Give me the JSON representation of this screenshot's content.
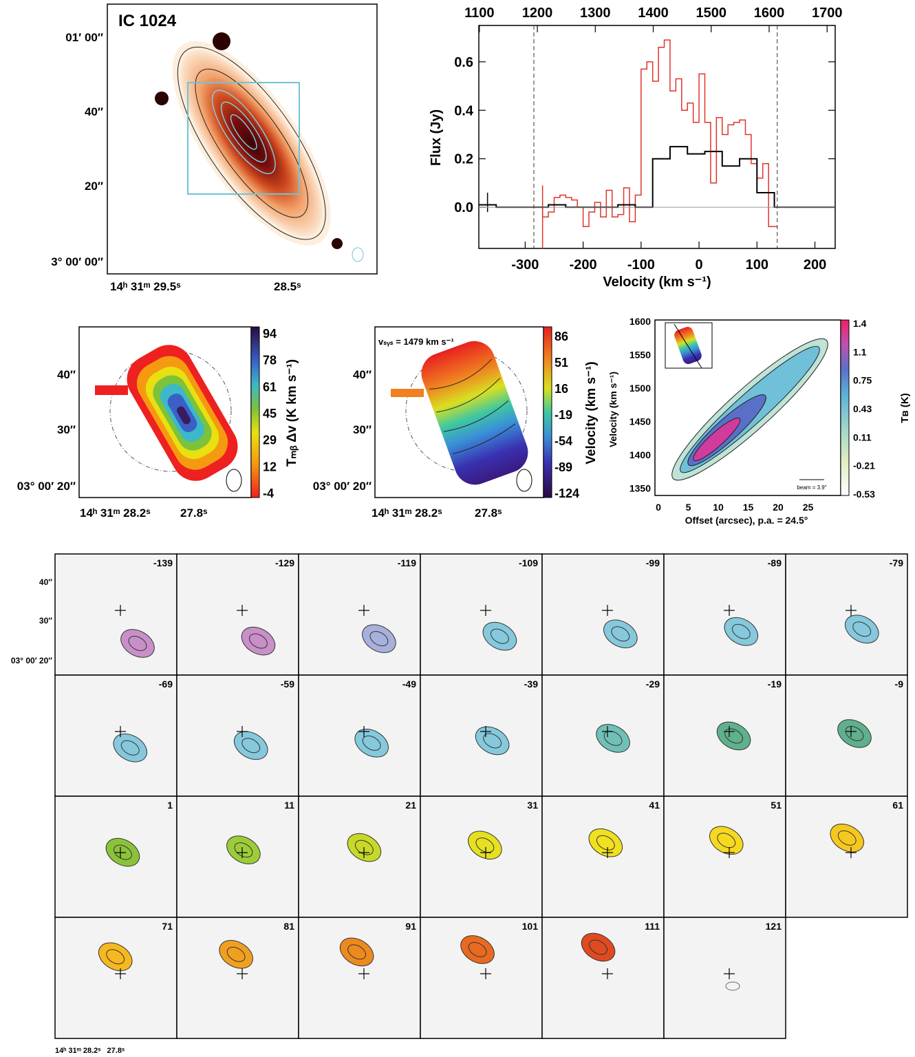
{
  "figure": {
    "title": "IC 1024",
    "colors": {
      "cyan_box": "#6fc3d6",
      "spectrum_red": "#e0332a",
      "spectrum_black": "#000000",
      "panel_bg": "#f2f2f2"
    }
  },
  "image_panel": {
    "dec_ticks": [
      "01′ 00″",
      "40″",
      "20″",
      "3° 00′ 00″"
    ],
    "ra_label_1": "14ʰ 31ᵐ 29.5ˢ",
    "ra_label_2": "28.5ˢ"
  },
  "spectrum": {
    "ylabel": "Flux (Jy)",
    "xlabel": "Velocity (km s⁻¹)",
    "top_ticks": [
      "1100",
      "1200",
      "1300",
      "1400",
      "1500",
      "1600",
      "1700"
    ],
    "bottom_ticks": [
      "-300",
      "-200",
      "-100",
      "0",
      "100",
      "200"
    ],
    "y_ticks": [
      "0.0",
      "0.2",
      "0.4",
      "0.6"
    ]
  },
  "chart_data": {
    "type": "line",
    "title": "",
    "xlabel": "Velocity (km s⁻¹)",
    "ylabel": "Flux (Jy)",
    "xlim": [
      -380,
      235
    ],
    "ylim": [
      -0.17,
      0.75
    ],
    "top_axis_label_values": [
      1100,
      1200,
      1300,
      1400,
      1500,
      1600,
      1700
    ],
    "vertical_dashed_lines": [
      -285,
      135
    ],
    "series": [
      {
        "color": "#e0332a",
        "step": true,
        "x": [
          -285,
          -270,
          -260,
          -250,
          -240,
          -230,
          -220,
          -210,
          -200,
          -190,
          -180,
          -170,
          -160,
          -150,
          -140,
          -130,
          -120,
          -110,
          -100,
          -90,
          -80,
          -70,
          -60,
          -50,
          -40,
          -30,
          -20,
          -10,
          0,
          10,
          20,
          30,
          40,
          50,
          60,
          70,
          80,
          90,
          100,
          110,
          120,
          135
        ],
        "y": [
          0.0,
          -0.04,
          -0.02,
          0.04,
          0.05,
          0.04,
          0.03,
          0.0,
          -0.08,
          -0.02,
          0.02,
          -0.04,
          0.07,
          -0.04,
          -0.03,
          0.08,
          -0.06,
          0.05,
          0.57,
          0.6,
          0.52,
          0.66,
          0.69,
          0.48,
          0.53,
          0.4,
          0.43,
          0.35,
          0.55,
          0.35,
          0.1,
          0.37,
          0.3,
          0.34,
          0.35,
          0.36,
          0.3,
          0.18,
          0.12,
          0.18,
          -0.08,
          -0.08
        ],
        "error_bar": {
          "x": -270,
          "y": -0.04,
          "err": 0.13
        }
      },
      {
        "color": "#000000",
        "step": true,
        "x": [
          -380,
          -350,
          -320,
          -290,
          -260,
          -230,
          -200,
          -170,
          -140,
          -110,
          -80,
          -50,
          -20,
          10,
          40,
          70,
          100,
          130,
          160,
          190,
          235
        ],
        "y": [
          0.01,
          0.0,
          0.0,
          0.0,
          0.01,
          0.0,
          0.0,
          0.0,
          0.01,
          0.0,
          0.2,
          0.25,
          0.22,
          0.23,
          0.17,
          0.2,
          0.06,
          0.0,
          0.0,
          0.0,
          0.0
        ],
        "error_bar": {
          "x": -365,
          "y": 0.02,
          "err": 0.04
        }
      }
    ]
  },
  "moment0": {
    "dec_ticks": [
      "40″",
      "30″",
      "03° 00′ 20″"
    ],
    "ra_label_1": "14ʰ 31ᵐ 28.2ˢ",
    "ra_label_2": "27.8ˢ",
    "colorbar_label": "Tₘᵦ Δv (K km s⁻¹)",
    "colorbar_ticks": [
      "94",
      "78",
      "61",
      "45",
      "29",
      "12",
      "-4"
    ]
  },
  "moment1": {
    "vsys_label": "vₛᵧₛ = 1479 km s⁻¹",
    "dec_ticks": [
      "40″",
      "30″",
      "03° 00′ 20″"
    ],
    "ra_label_1": "14ʰ 31ᵐ 28.2ˢ",
    "ra_label_2": "27.8ˢ",
    "colorbar_label": "Velocity (km s⁻¹)",
    "colorbar_ticks": [
      "86",
      "51",
      "16",
      "-19",
      "-54",
      "-89",
      "-124"
    ]
  },
  "pv": {
    "ylabel": "Velocity (km s⁻¹)",
    "xlabel": "Offset (arcsec), p.a. = 24.5°",
    "y_ticks": [
      "1600",
      "1550",
      "1500",
      "1450",
      "1400",
      "1350"
    ],
    "x_ticks": [
      "0",
      "5",
      "10",
      "15",
      "20",
      "25"
    ],
    "colorbar_label": "Tʙ (K)",
    "colorbar_ticks": [
      "1.4",
      "1.1",
      "0.75",
      "0.43",
      "0.11",
      "-0.21",
      "-0.53"
    ],
    "beam_label": "beam = 3.9″"
  },
  "channels": {
    "velocities": [
      "-139",
      "-129",
      "-119",
      "-109",
      "-99",
      "-89",
      "-79",
      "-69",
      "-59",
      "-49",
      "-39",
      "-29",
      "-19",
      "-9",
      "1",
      "11",
      "21",
      "31",
      "41",
      "51",
      "61",
      "71",
      "81",
      "91",
      "101",
      "111",
      "121"
    ],
    "dec_ticks": [
      "40″",
      "30″",
      "03° 00′ 20″"
    ],
    "ra_label": "14ʰ 31ᵐ 28.2ˢ   27.8ˢ"
  }
}
